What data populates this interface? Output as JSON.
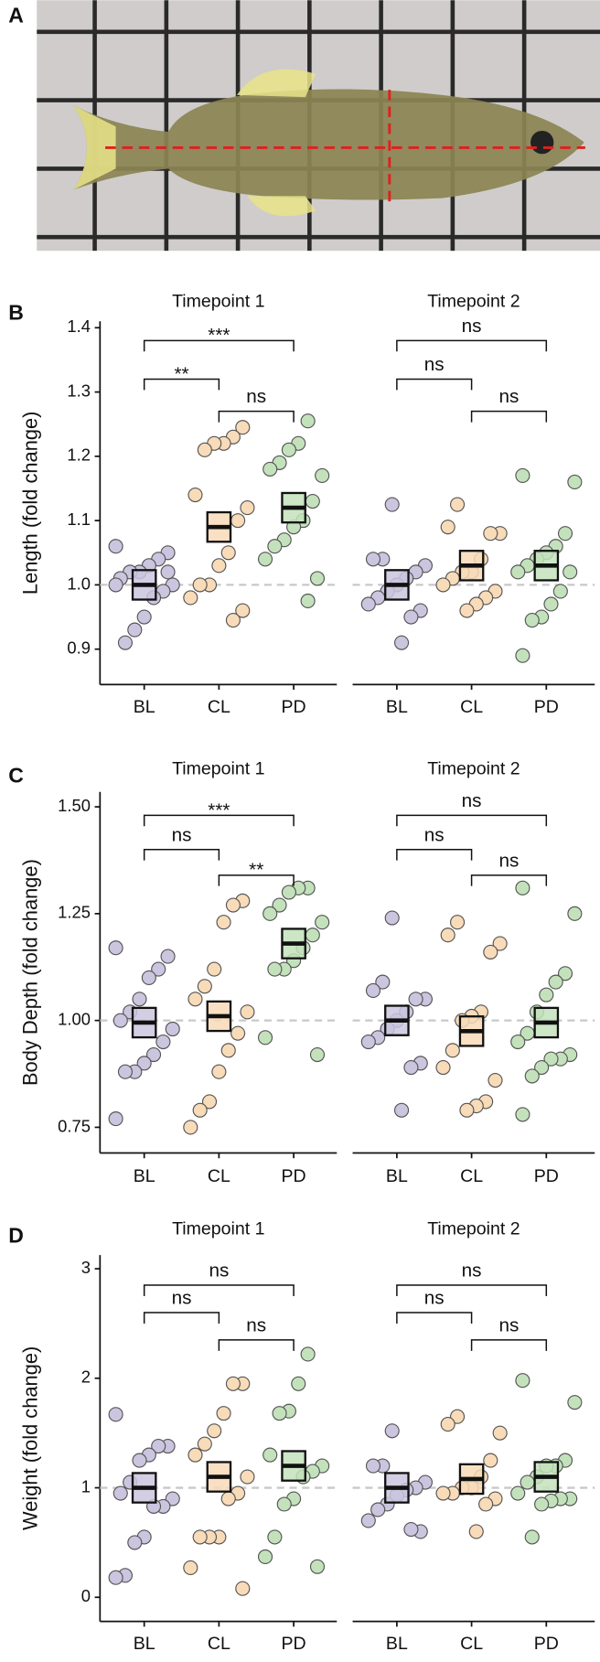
{
  "chart_data": [
    {
      "type": "strip",
      "panel_label": "B",
      "y_label": "Length (fold change)",
      "categories": [
        "BL",
        "CL",
        "PD"
      ],
      "colors": [
        "#cbc5df",
        "#f8dbb8",
        "#c3e2bc"
      ],
      "ylim": [
        0.845,
        1.41
      ],
      "yticks": [
        0.9,
        {
          "value": 1,
          "label": "1.0"
        },
        1.1,
        1.2,
        1.3,
        1.4
      ],
      "hline": 1,
      "facets": [
        {
          "title": "Timepoint 1",
          "values": [
            [
              1.06,
              1.05,
              1.04,
              1.03,
              1.02,
              1.02,
              1.01,
              1.0,
              0.99,
              0.98,
              0.95,
              0.93,
              0.91,
              1.0,
              1.02
            ],
            [
              1.245,
              1.23,
              1.22,
              1.22,
              1.21,
              1.14,
              1.12,
              1.1,
              1.05,
              1.03,
              1.0,
              1.0,
              0.98,
              0.96,
              0.945
            ],
            [
              1.255,
              1.22,
              1.21,
              1.19,
              1.18,
              1.17,
              1.13,
              1.1,
              1.09,
              1.07,
              1.06,
              1.04,
              1.01,
              0.975
            ]
          ],
          "medians": [
            1.0,
            1.09,
            1.12
          ],
          "brackets": [
            {
              "pair": [
                "BL",
                "PD"
              ],
              "y": 1.38,
              "label": "***"
            },
            {
              "pair": [
                "BL",
                "CL"
              ],
              "y": 1.32,
              "label": "**"
            },
            {
              "pair": [
                "CL",
                "PD"
              ],
              "y": 1.27,
              "label": "ns"
            }
          ]
        },
        {
          "title": "Timepoint 2",
          "values": [
            [
              1.125,
              1.04,
              1.04,
              1.03,
              1.02,
              1.01,
              1.0,
              0.99,
              0.98,
              0.97,
              0.96,
              0.95,
              0.91
            ],
            [
              1.125,
              1.09,
              1.08,
              1.08,
              1.04,
              1.02,
              1.02,
              1.01,
              1.0,
              0.99,
              0.98,
              0.97,
              0.96
            ],
            [
              1.17,
              1.16,
              1.08,
              1.06,
              1.05,
              1.04,
              1.03,
              1.02,
              1.02,
              0.99,
              0.97,
              0.95,
              0.945,
              0.89
            ]
          ],
          "medians": [
            1.0,
            1.03,
            1.03
          ],
          "brackets": [
            {
              "pair": [
                "BL",
                "PD"
              ],
              "y": 1.38,
              "label": "ns"
            },
            {
              "pair": [
                "BL",
                "CL"
              ],
              "y": 1.32,
              "label": "ns"
            },
            {
              "pair": [
                "CL",
                "PD"
              ],
              "y": 1.27,
              "label": "ns"
            }
          ]
        }
      ]
    },
    {
      "type": "strip",
      "panel_label": "C",
      "y_label": "Body Depth (fold change)",
      "categories": [
        "BL",
        "CL",
        "PD"
      ],
      "colors": [
        "#cbc5df",
        "#f8dbb8",
        "#c3e2bc"
      ],
      "ylim": [
        0.69,
        1.535
      ],
      "yticks": [
        0.75,
        {
          "value": 1,
          "label": "1.00"
        },
        1.25,
        {
          "value": 1.5,
          "label": "1.50"
        }
      ],
      "hline": 1,
      "facets": [
        {
          "title": "Timepoint 1",
          "values": [
            [
              1.17,
              1.15,
              1.12,
              1.1,
              1.05,
              1.02,
              1.0,
              0.98,
              0.95,
              0.92,
              0.9,
              0.88,
              0.88,
              0.77
            ],
            [
              1.28,
              1.27,
              1.23,
              1.12,
              1.08,
              1.05,
              1.02,
              0.97,
              0.93,
              0.88,
              0.81,
              0.79,
              0.75
            ],
            [
              1.31,
              1.31,
              1.3,
              1.27,
              1.25,
              1.23,
              1.2,
              1.17,
              1.14,
              1.12,
              1.12,
              0.96,
              0.92
            ]
          ],
          "medians": [
            0.995,
            1.01,
            1.18
          ],
          "brackets": [
            {
              "pair": [
                "BL",
                "PD"
              ],
              "y": 1.48,
              "label": "***"
            },
            {
              "pair": [
                "BL",
                "CL"
              ],
              "y": 1.4,
              "label": "ns"
            },
            {
              "pair": [
                "CL",
                "PD"
              ],
              "y": 1.34,
              "label": "**"
            }
          ]
        },
        {
          "title": "Timepoint 2",
          "values": [
            [
              1.24,
              1.09,
              1.07,
              1.05,
              1.05,
              1.02,
              1.0,
              0.98,
              0.96,
              0.95,
              0.9,
              0.89,
              0.79
            ],
            [
              1.23,
              1.2,
              1.18,
              1.16,
              1.02,
              1.01,
              1.0,
              0.93,
              0.89,
              0.86,
              0.81,
              0.8,
              0.79
            ],
            [
              1.31,
              1.25,
              1.11,
              1.09,
              1.06,
              1.02,
              0.97,
              0.95,
              0.92,
              0.91,
              0.91,
              0.89,
              0.87,
              0.78
            ]
          ],
          "medians": [
            1.0,
            0.975,
            0.995
          ],
          "brackets": [
            {
              "pair": [
                "BL",
                "PD"
              ],
              "y": 1.48,
              "label": "ns"
            },
            {
              "pair": [
                "BL",
                "CL"
              ],
              "y": 1.4,
              "label": "ns"
            },
            {
              "pair": [
                "CL",
                "PD"
              ],
              "y": 1.34,
              "label": "ns"
            }
          ]
        }
      ]
    },
    {
      "type": "strip",
      "panel_label": "D",
      "y_label": "Weight (fold change)",
      "categories": [
        "BL",
        "CL",
        "PD"
      ],
      "colors": [
        "#cbc5df",
        "#f8dbb8",
        "#c3e2bc"
      ],
      "ylim": [
        -0.22,
        3.125
      ],
      "yticks": [
        0,
        1,
        2,
        3
      ],
      "hline": 1,
      "facets": [
        {
          "title": "Timepoint 1",
          "values": [
            [
              1.67,
              1.38,
              1.38,
              1.3,
              1.25,
              1.05,
              0.95,
              0.9,
              0.83,
              0.83,
              0.55,
              0.5,
              0.2,
              0.18
            ],
            [
              1.95,
              1.95,
              1.68,
              1.52,
              1.4,
              1.3,
              1.1,
              0.95,
              0.9,
              0.55,
              0.55,
              0.55,
              0.27,
              0.08
            ],
            [
              2.22,
              1.95,
              1.7,
              1.68,
              1.3,
              1.2,
              1.15,
              1.1,
              0.9,
              0.85,
              0.55,
              0.37,
              0.28
            ]
          ],
          "medians": [
            1.0,
            1.1,
            1.2
          ],
          "brackets": [
            {
              "pair": [
                "BL",
                "PD"
              ],
              "y": 2.85,
              "label": "ns"
            },
            {
              "pair": [
                "BL",
                "CL"
              ],
              "y": 2.6,
              "label": "ns"
            },
            {
              "pair": [
                "CL",
                "PD"
              ],
              "y": 2.35,
              "label": "ns"
            }
          ]
        },
        {
          "title": "Timepoint 2",
          "values": [
            [
              1.52,
              1.2,
              1.2,
              1.05,
              1.0,
              0.98,
              0.93,
              0.85,
              0.8,
              0.7,
              0.6,
              0.62
            ],
            [
              1.65,
              1.58,
              1.5,
              1.25,
              1.1,
              1.0,
              1.0,
              0.95,
              0.95,
              0.9,
              0.85,
              0.6
            ],
            [
              1.98,
              1.78,
              1.25,
              1.2,
              1.2,
              1.1,
              1.05,
              0.95,
              0.9,
              0.9,
              0.88,
              0.85,
              0.55
            ]
          ],
          "medians": [
            1.0,
            1.08,
            1.1
          ],
          "brackets": [
            {
              "pair": [
                "BL",
                "PD"
              ],
              "y": 2.85,
              "label": "ns"
            },
            {
              "pair": [
                "BL",
                "CL"
              ],
              "y": 2.6,
              "label": "ns"
            },
            {
              "pair": [
                "CL",
                "PD"
              ],
              "y": 2.35,
              "label": "ns"
            }
          ]
        }
      ]
    }
  ],
  "panel_a": {
    "label": "A"
  }
}
